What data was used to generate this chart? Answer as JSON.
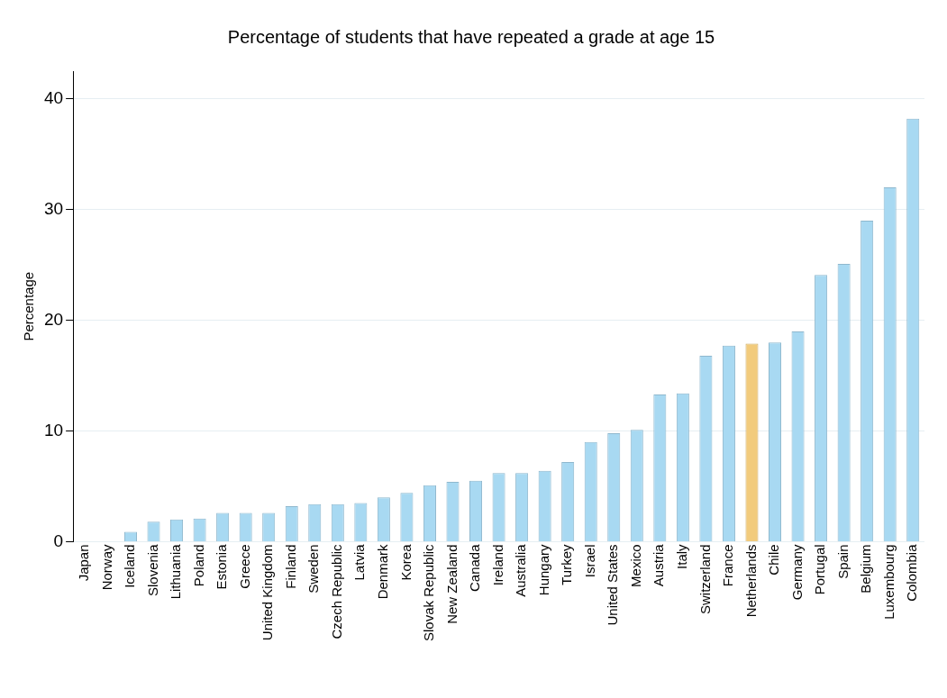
{
  "chart_data": {
    "type": "bar",
    "title": "Percentage of students that have repeated a grade at age 15",
    "ylabel": "Percentage",
    "categories": [
      "Japan",
      "Norway",
      "Iceland",
      "Slovenia",
      "Lithuania",
      "Poland",
      "Estonia",
      "Greece",
      "United Kingdom",
      "Finland",
      "Sweden",
      "Czech Republic",
      "Latvia",
      "Denmark",
      "Korea",
      "Slovak Republic",
      "New Zealand",
      "Canada",
      "Ireland",
      "Australia",
      "Hungary",
      "Turkey",
      "Israel",
      "United States",
      "Mexico",
      "Austria",
      "Italy",
      "Switzerland",
      "France",
      "Netherlands",
      "Chile",
      "Germany",
      "Portugal",
      "Spain",
      "Belgium",
      "Luxembourg",
      "Colombia"
    ],
    "values": [
      0,
      0,
      0.9,
      1.8,
      2.0,
      2.1,
      2.6,
      2.6,
      2.6,
      3.2,
      3.4,
      3.4,
      3.5,
      4.0,
      4.4,
      5.1,
      5.4,
      5.5,
      6.2,
      6.2,
      6.4,
      7.2,
      9.0,
      9.8,
      10.1,
      13.3,
      13.4,
      16.8,
      17.7,
      17.9,
      18.0,
      19.0,
      24.1,
      25.1,
      29.0,
      32.0,
      38.2
    ],
    "colors": [
      "#a8d9f2",
      "#a8d9f2",
      "#a8d9f2",
      "#a8d9f2",
      "#a8d9f2",
      "#a8d9f2",
      "#a8d9f2",
      "#a8d9f2",
      "#a8d9f2",
      "#a8d9f2",
      "#a8d9f2",
      "#a8d9f2",
      "#a8d9f2",
      "#a8d9f2",
      "#a8d9f2",
      "#a8d9f2",
      "#a8d9f2",
      "#a8d9f2",
      "#a8d9f2",
      "#a8d9f2",
      "#a8d9f2",
      "#a8d9f2",
      "#a8d9f2",
      "#a8d9f2",
      "#a8d9f2",
      "#a8d9f2",
      "#a8d9f2",
      "#a8d9f2",
      "#a8d9f2",
      "#f2cb7c",
      "#a8d9f2",
      "#a8d9f2",
      "#a8d9f2",
      "#a8d9f2",
      "#a8d9f2",
      "#a8d9f2",
      "#a8d9f2"
    ],
    "ylim": [
      0,
      42.5
    ],
    "yticks": [
      0,
      10,
      20,
      30,
      40
    ],
    "grid": "y",
    "legend": false
  }
}
